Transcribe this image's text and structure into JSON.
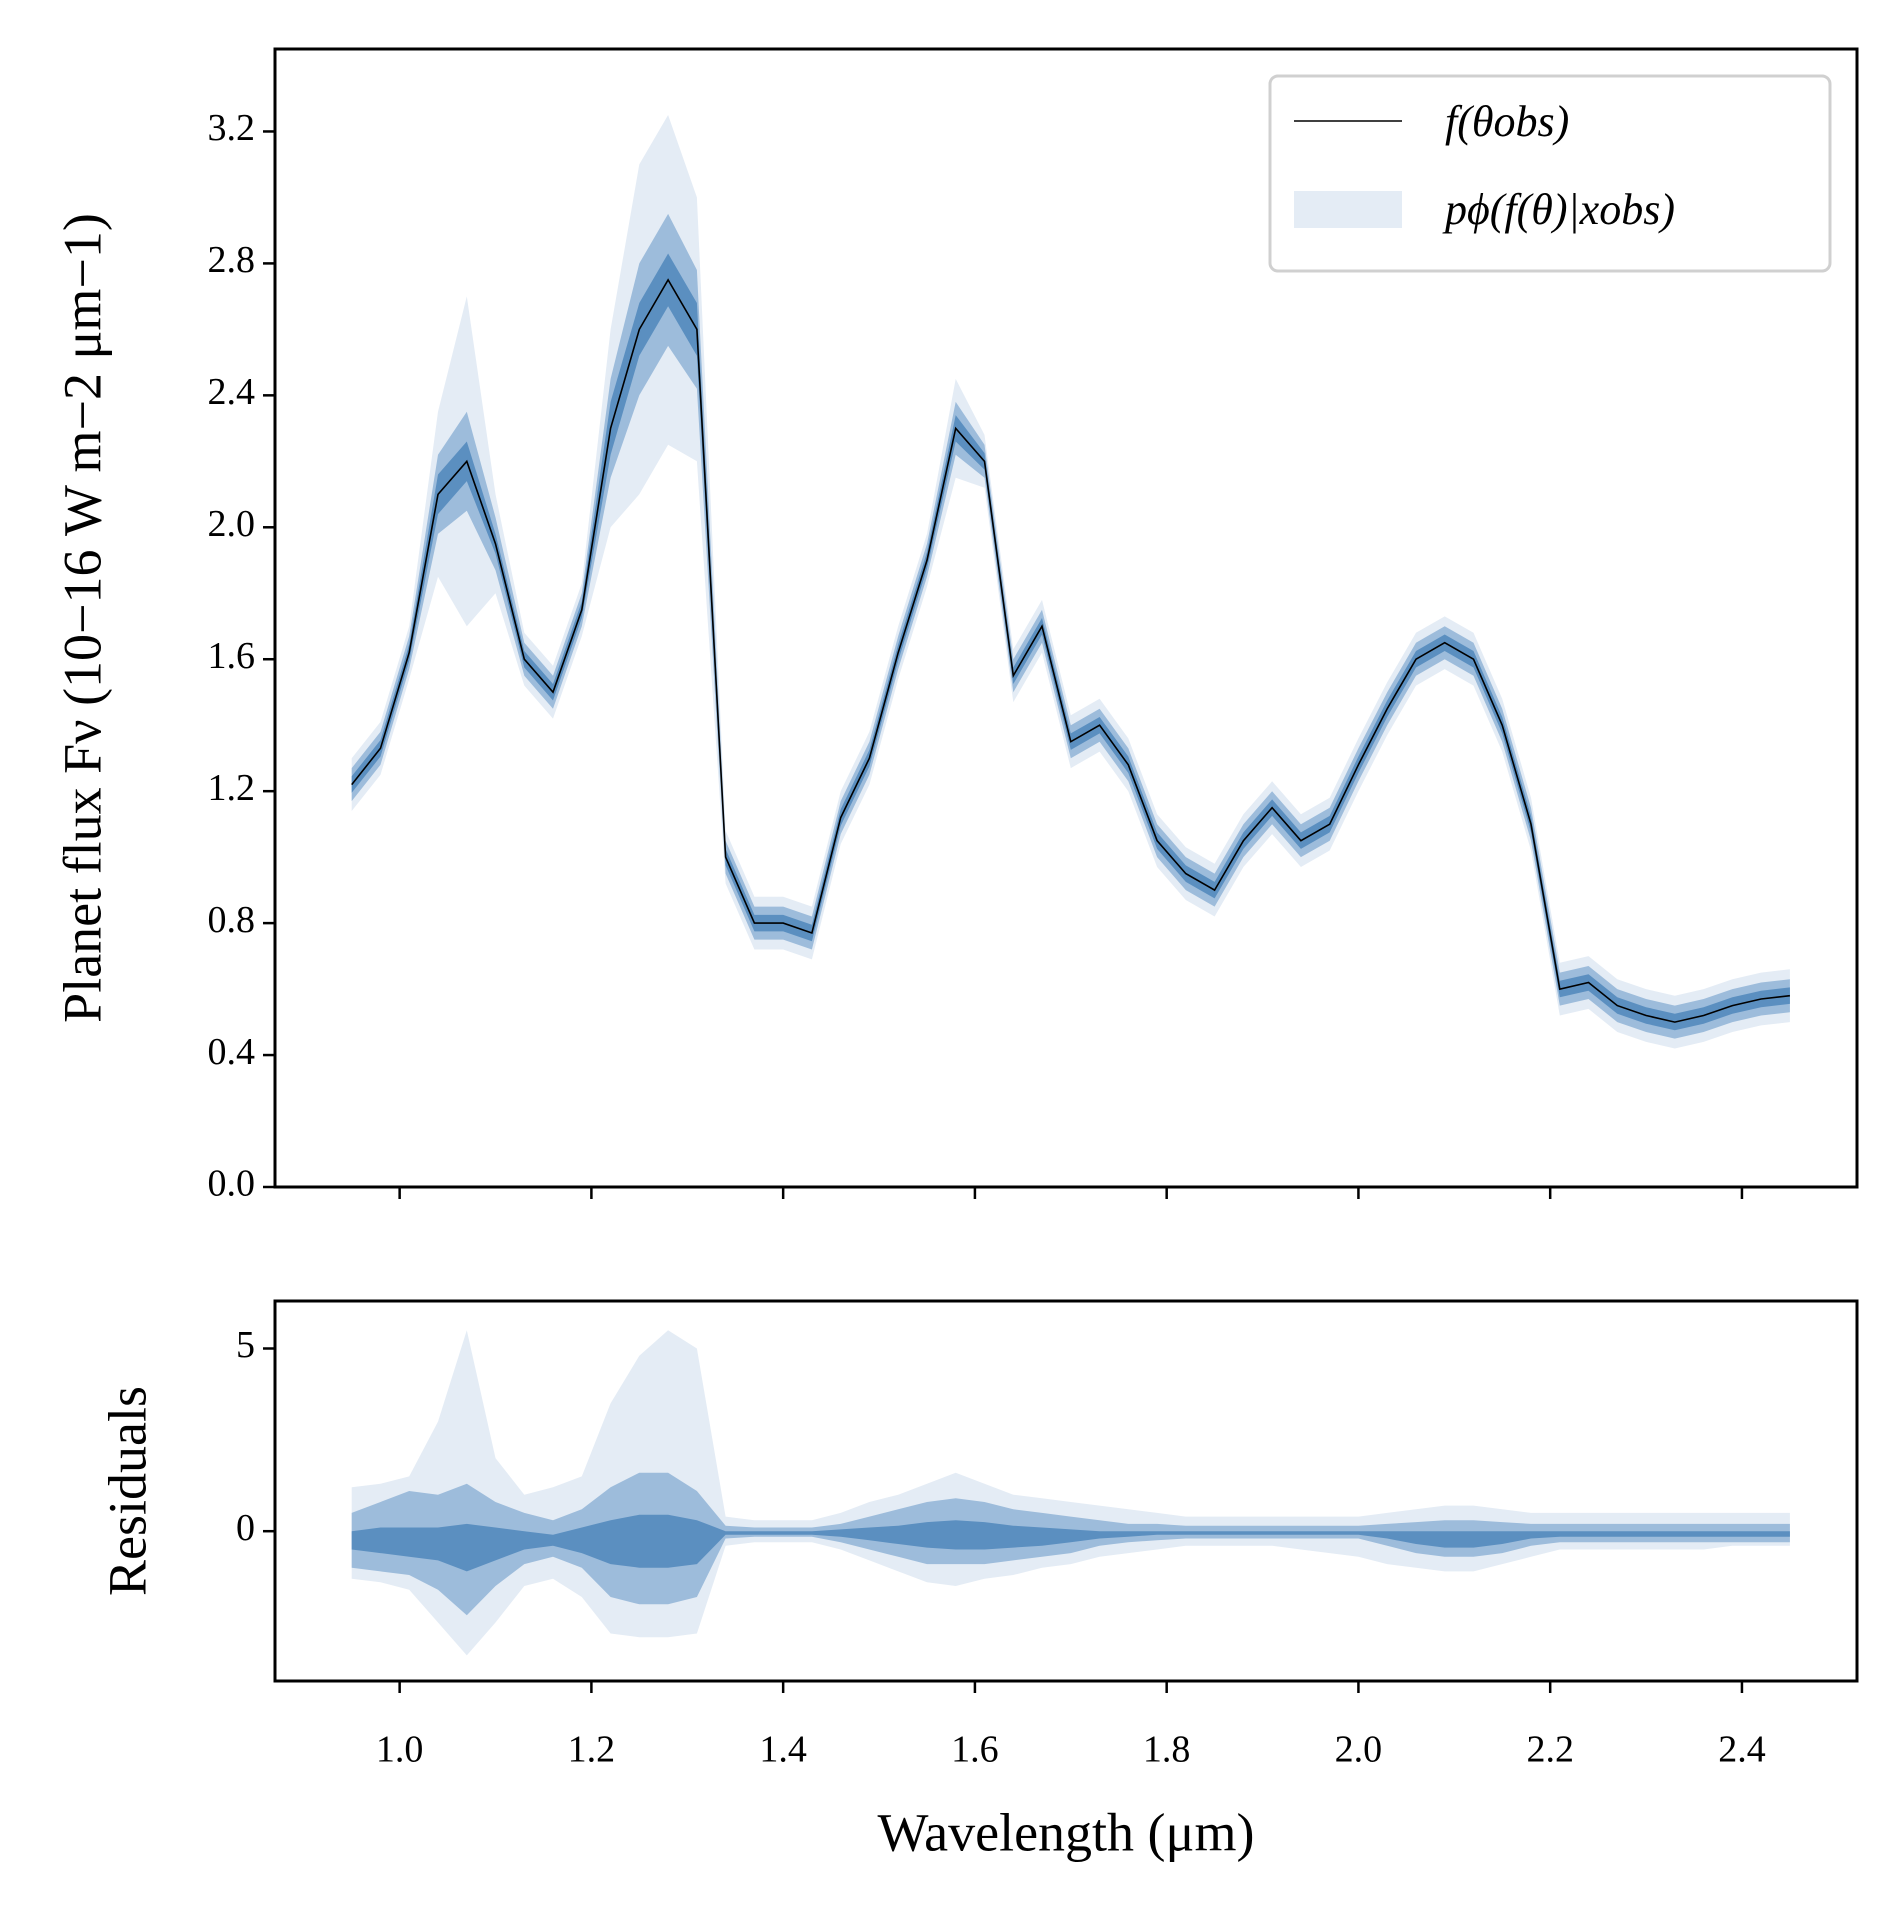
{
  "chart_data": [
    {
      "type": "line",
      "ylabel": "Planet flux Fν (10−16 W m−2 μm−1)",
      "x": [
        0.95,
        0.98,
        1.01,
        1.04,
        1.07,
        1.1,
        1.13,
        1.16,
        1.19,
        1.22,
        1.25,
        1.28,
        1.31,
        1.34,
        1.37,
        1.4,
        1.43,
        1.46,
        1.49,
        1.52,
        1.55,
        1.58,
        1.61,
        1.64,
        1.67,
        1.7,
        1.73,
        1.76,
        1.79,
        1.82,
        1.85,
        1.88,
        1.91,
        1.94,
        1.97,
        2.0,
        2.03,
        2.06,
        2.09,
        2.12,
        2.15,
        2.18,
        2.21,
        2.24,
        2.27,
        2.3,
        2.33,
        2.36,
        2.39,
        2.42,
        2.45
      ],
      "series": [
        {
          "name": "f(θobs)",
          "color": "#000000",
          "values": [
            1.22,
            1.33,
            1.62,
            2.1,
            2.2,
            1.95,
            1.6,
            1.5,
            1.75,
            2.3,
            2.6,
            2.75,
            2.6,
            1.0,
            0.8,
            0.8,
            0.77,
            1.12,
            1.3,
            1.62,
            1.9,
            2.3,
            2.2,
            1.55,
            1.7,
            1.35,
            1.4,
            1.28,
            1.05,
            0.95,
            0.9,
            1.05,
            1.15,
            1.05,
            1.1,
            1.28,
            1.45,
            1.6,
            1.65,
            1.6,
            1.4,
            1.1,
            0.6,
            0.62,
            0.55,
            0.52,
            0.5,
            0.52,
            0.55,
            0.57,
            0.58
          ]
        }
      ],
      "bands": {
        "name": "pϕ(f(θ)|xobs)",
        "colors": [
          "#e4ecf5",
          "#9dbcdb",
          "#5b8fc0"
        ],
        "spread": [
          [
            0.08,
            0.08,
            0.08,
            0.25,
            0.5,
            0.15,
            0.08,
            0.08,
            0.08,
            0.3,
            0.5,
            0.5,
            0.4,
            0.08,
            0.08,
            0.08,
            0.08,
            0.08,
            0.08,
            0.08,
            0.08,
            0.15,
            0.08,
            0.08,
            0.08,
            0.08,
            0.08,
            0.08,
            0.08,
            0.08,
            0.08,
            0.08,
            0.08,
            0.08,
            0.08,
            0.08,
            0.08,
            0.08,
            0.08,
            0.08,
            0.08,
            0.08,
            0.08,
            0.08,
            0.08,
            0.08,
            0.08,
            0.08,
            0.08,
            0.08,
            0.08
          ],
          [
            0.05,
            0.05,
            0.05,
            0.12,
            0.15,
            0.08,
            0.05,
            0.05,
            0.05,
            0.15,
            0.2,
            0.2,
            0.18,
            0.05,
            0.05,
            0.05,
            0.05,
            0.05,
            0.05,
            0.05,
            0.05,
            0.08,
            0.05,
            0.05,
            0.05,
            0.05,
            0.05,
            0.05,
            0.05,
            0.05,
            0.05,
            0.05,
            0.05,
            0.05,
            0.05,
            0.05,
            0.05,
            0.05,
            0.05,
            0.05,
            0.05,
            0.05,
            0.05,
            0.05,
            0.05,
            0.05,
            0.05,
            0.05,
            0.05,
            0.05,
            0.05
          ],
          [
            0.025,
            0.025,
            0.025,
            0.06,
            0.06,
            0.03,
            0.025,
            0.025,
            0.025,
            0.08,
            0.08,
            0.08,
            0.08,
            0.025,
            0.025,
            0.025,
            0.025,
            0.025,
            0.025,
            0.025,
            0.025,
            0.04,
            0.025,
            0.025,
            0.025,
            0.025,
            0.025,
            0.025,
            0.025,
            0.025,
            0.025,
            0.025,
            0.025,
            0.025,
            0.025,
            0.025,
            0.025,
            0.025,
            0.025,
            0.025,
            0.025,
            0.025,
            0.025,
            0.025,
            0.025,
            0.025,
            0.025,
            0.025,
            0.025,
            0.025,
            0.025
          ]
        ]
      },
      "ylim": [
        0,
        3.45
      ],
      "yticks": [
        {
          "value": 0,
          "label": "0.0"
        },
        0.4,
        0.8,
        1.2,
        1.6,
        {
          "value": 2,
          "label": "2.0"
        },
        2.4,
        2.8,
        3.2
      ],
      "legend": "upper right"
    },
    {
      "type": "band",
      "ylabel": "Residuals",
      "xlabel": "Wavelength (μm)",
      "x": [
        0.95,
        0.98,
        1.01,
        1.04,
        1.07,
        1.1,
        1.13,
        1.16,
        1.19,
        1.22,
        1.25,
        1.28,
        1.31,
        1.34,
        1.37,
        1.4,
        1.43,
        1.46,
        1.49,
        1.52,
        1.55,
        1.58,
        1.61,
        1.64,
        1.67,
        1.7,
        1.73,
        1.76,
        1.79,
        1.82,
        1.85,
        1.88,
        1.91,
        1.94,
        1.97,
        2.0,
        2.03,
        2.06,
        2.09,
        2.12,
        2.15,
        2.18,
        2.21,
        2.24,
        2.27,
        2.3,
        2.33,
        2.36,
        2.39,
        2.42,
        2.45
      ],
      "bands": {
        "colors": [
          "#e4ecf5",
          "#9dbcdb",
          "#5b8fc0"
        ],
        "upper": [
          [
            1.2,
            1.3,
            1.5,
            3.0,
            5.5,
            2.0,
            1.0,
            1.2,
            1.5,
            3.5,
            4.8,
            5.5,
            5.0,
            0.4,
            0.3,
            0.3,
            0.3,
            0.5,
            0.8,
            1.0,
            1.3,
            1.6,
            1.3,
            1.0,
            0.9,
            0.8,
            0.7,
            0.6,
            0.5,
            0.4,
            0.4,
            0.4,
            0.4,
            0.4,
            0.4,
            0.4,
            0.5,
            0.6,
            0.7,
            0.7,
            0.6,
            0.5,
            0.5,
            0.5,
            0.5,
            0.5,
            0.5,
            0.5,
            0.5,
            0.5,
            0.5
          ],
          [
            0.5,
            0.8,
            1.1,
            1.0,
            1.3,
            0.8,
            0.5,
            0.3,
            0.6,
            1.2,
            1.6,
            1.6,
            1.1,
            0.15,
            0.1,
            0.1,
            0.1,
            0.2,
            0.4,
            0.6,
            0.8,
            0.9,
            0.8,
            0.6,
            0.5,
            0.4,
            0.3,
            0.2,
            0.2,
            0.15,
            0.15,
            0.15,
            0.15,
            0.15,
            0.15,
            0.15,
            0.2,
            0.25,
            0.3,
            0.3,
            0.25,
            0.2,
            0.2,
            0.2,
            0.2,
            0.2,
            0.2,
            0.2,
            0.2,
            0.2,
            0.2
          ],
          [
            0,
            0.1,
            0.1,
            0.1,
            0.2,
            0.1,
            0,
            -0.1,
            0.1,
            0.3,
            0.45,
            0.45,
            0.3,
            0,
            0,
            0,
            0,
            0.05,
            0.1,
            0.15,
            0.25,
            0.3,
            0.25,
            0.15,
            0.1,
            0.05,
            0,
            0,
            0,
            0,
            0,
            0,
            0,
            0,
            0,
            0,
            0,
            0,
            0,
            0,
            0,
            0,
            0,
            0,
            0,
            0,
            0,
            0,
            0,
            0,
            0
          ]
        ],
        "lower": [
          [
            -1.3,
            -1.4,
            -1.6,
            -2.5,
            -3.4,
            -2.5,
            -1.5,
            -1.3,
            -1.8,
            -2.8,
            -2.9,
            -2.9,
            -2.8,
            -0.4,
            -0.3,
            -0.3,
            -0.3,
            -0.5,
            -0.8,
            -1.1,
            -1.4,
            -1.5,
            -1.3,
            -1.2,
            -1.0,
            -0.9,
            -0.7,
            -0.6,
            -0.5,
            -0.4,
            -0.4,
            -0.4,
            -0.4,
            -0.5,
            -0.6,
            -0.7,
            -0.9,
            -1.0,
            -1.1,
            -1.1,
            -0.9,
            -0.7,
            -0.5,
            -0.5,
            -0.5,
            -0.5,
            -0.5,
            -0.5,
            -0.4,
            -0.4,
            -0.4
          ],
          [
            -1.0,
            -1.1,
            -1.2,
            -1.6,
            -2.3,
            -1.5,
            -0.9,
            -0.7,
            -1.0,
            -1.8,
            -2.0,
            -2.0,
            -1.8,
            -0.2,
            -0.15,
            -0.15,
            -0.15,
            -0.3,
            -0.5,
            -0.7,
            -0.9,
            -0.9,
            -0.9,
            -0.8,
            -0.7,
            -0.6,
            -0.4,
            -0.3,
            -0.25,
            -0.2,
            -0.2,
            -0.2,
            -0.2,
            -0.2,
            -0.2,
            -0.2,
            -0.4,
            -0.6,
            -0.7,
            -0.7,
            -0.6,
            -0.4,
            -0.3,
            -0.3,
            -0.3,
            -0.3,
            -0.3,
            -0.3,
            -0.3,
            -0.3,
            -0.3
          ],
          [
            -0.5,
            -0.6,
            -0.7,
            -0.8,
            -1.1,
            -0.8,
            -0.5,
            -0.4,
            -0.6,
            -0.9,
            -1.0,
            -1.0,
            -0.9,
            -0.1,
            -0.1,
            -0.1,
            -0.1,
            -0.15,
            -0.25,
            -0.35,
            -0.45,
            -0.5,
            -0.5,
            -0.45,
            -0.4,
            -0.3,
            -0.2,
            -0.15,
            -0.1,
            -0.1,
            -0.1,
            -0.1,
            -0.1,
            -0.1,
            -0.1,
            -0.1,
            -0.2,
            -0.35,
            -0.45,
            -0.45,
            -0.35,
            -0.2,
            -0.15,
            -0.15,
            -0.15,
            -0.15,
            -0.15,
            -0.15,
            -0.15,
            -0.15,
            -0.15
          ]
        ]
      },
      "xlim": [
        0.87,
        2.52
      ],
      "xticks": [
        {
          "value": 1,
          "label": "1.0"
        },
        1.2,
        1.4,
        1.6,
        1.8,
        {
          "value": 2,
          "label": "2.0"
        },
        2.2,
        2.4
      ],
      "ylim": [
        -4.1,
        6.3
      ],
      "yticks": [
        0,
        5
      ]
    }
  ]
}
